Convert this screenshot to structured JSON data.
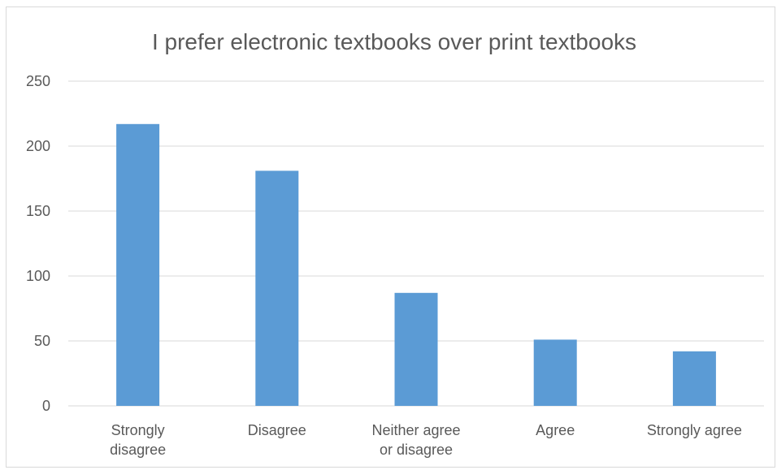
{
  "chart_data": {
    "type": "bar",
    "title": "I prefer electronic textbooks over print textbooks",
    "categories": [
      [
        "Strongly",
        "disagree"
      ],
      [
        "Disagree"
      ],
      [
        "Neither agree",
        "or disagree"
      ],
      [
        "Agree"
      ],
      [
        "Strongly agree"
      ]
    ],
    "values": [
      217,
      181,
      87,
      51,
      42
    ],
    "ylim": [
      0,
      250
    ],
    "yticks": [
      0,
      50,
      100,
      150,
      200,
      250
    ],
    "grid": true,
    "legend": "none",
    "bar_color": "#5b9bd5",
    "grid_color": "#d9d9d9",
    "text_color": "#595959"
  }
}
